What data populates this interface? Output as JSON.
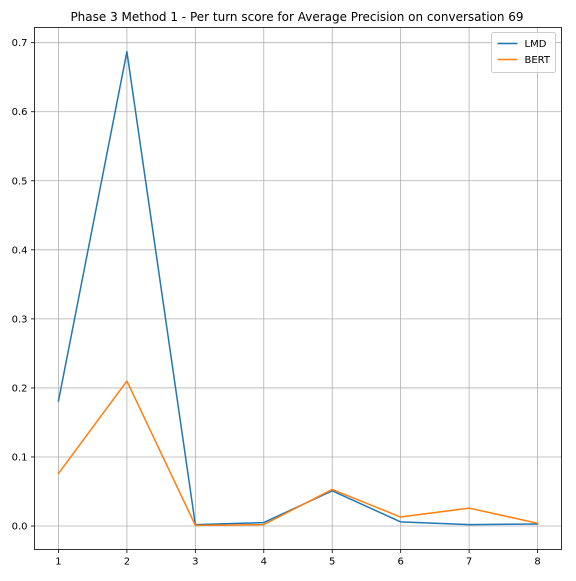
{
  "chart_data": {
    "type": "line",
    "title": "Phase 3 Method 1 - Per turn score for Average Precision on conversation 69",
    "xlabel": "",
    "ylabel": "",
    "x": [
      1,
      2,
      3,
      4,
      5,
      6,
      7,
      8
    ],
    "xticks": [
      "1",
      "2",
      "3",
      "4",
      "5",
      "6",
      "7",
      "8"
    ],
    "yticks": [
      "0.0",
      "0.1",
      "0.2",
      "0.3",
      "0.4",
      "0.5",
      "0.6",
      "0.7"
    ],
    "xlim": [
      0.65,
      8.35
    ],
    "ylim": [
      -0.034,
      0.722
    ],
    "grid": true,
    "legend_position": "top-right",
    "series": [
      {
        "name": "LMD",
        "color": "#1f77b4",
        "values": [
          0.181,
          0.687,
          0.002,
          0.005,
          0.051,
          0.006,
          0.002,
          0.003
        ]
      },
      {
        "name": "BERT",
        "color": "#ff7f0e",
        "values": [
          0.076,
          0.21,
          0.001,
          0.002,
          0.053,
          0.013,
          0.026,
          0.004
        ]
      }
    ]
  }
}
